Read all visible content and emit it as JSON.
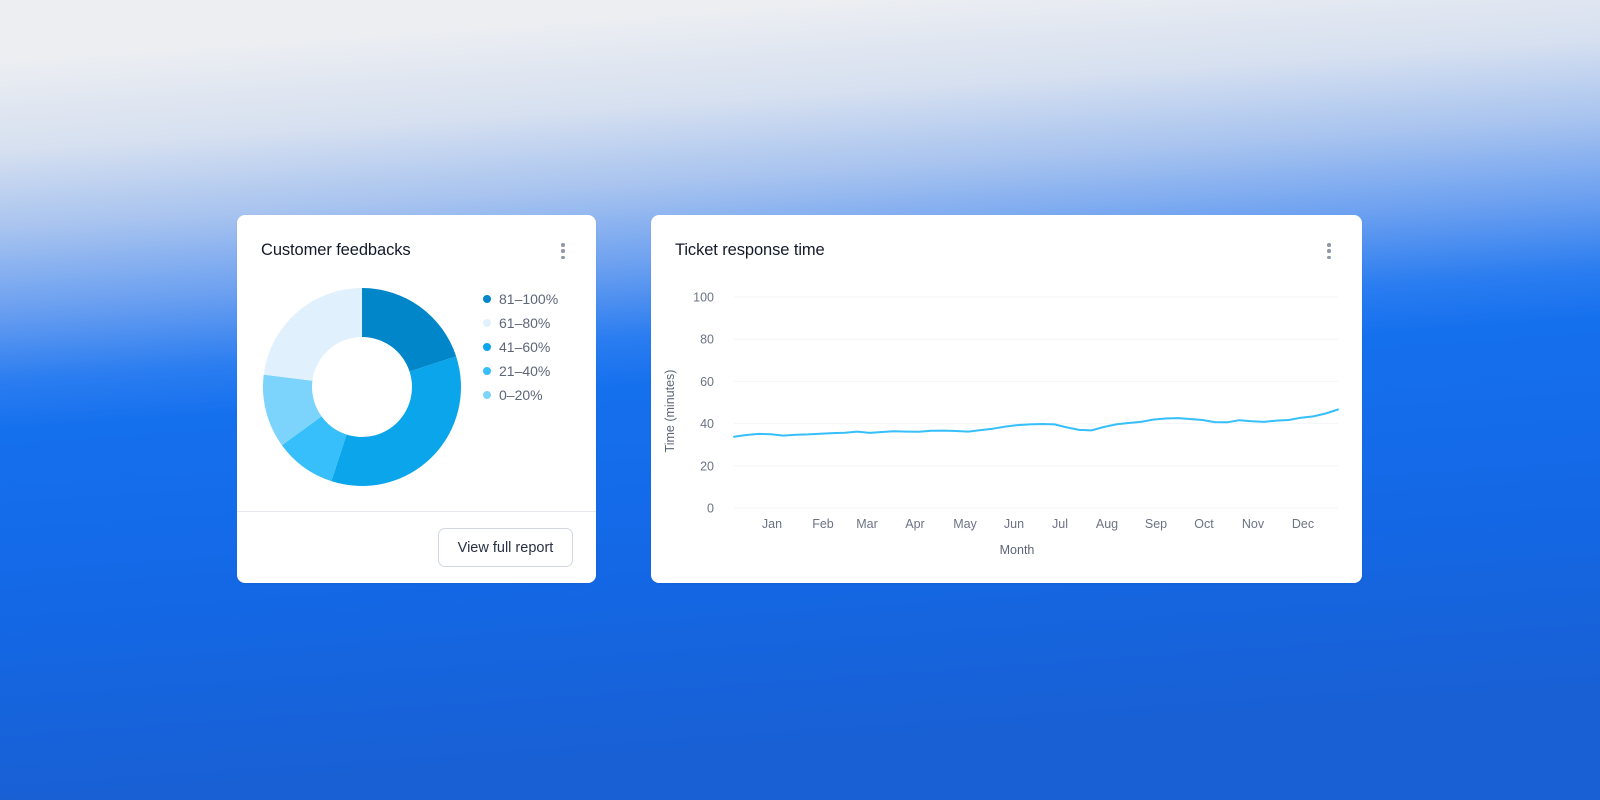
{
  "cards": {
    "feedback": {
      "title": "Customer feedbacks",
      "menu_icon": "kebab-vertical-icon",
      "button_label": "View full report"
    },
    "response": {
      "title": "Ticket response time",
      "menu_icon": "kebab-vertical-icon"
    }
  },
  "colors": {
    "slice_81_100": "#0086c9",
    "slice_61_80": "#e0f0fc",
    "slice_41_60": "#0ba5ec",
    "slice_21_40": "#36bffa",
    "slice_0_20": "#7cd4fd",
    "line": "#36bffa",
    "gridline": "#f2f4f7"
  },
  "chart_data": [
    {
      "type": "pie",
      "title": "Customer feedbacks",
      "donut": true,
      "legend_position": "right",
      "categories": [
        "81–100%",
        "61–80%",
        "41–60%",
        "21–40%",
        "0–20%"
      ],
      "values": [
        20,
        23,
        35,
        10,
        12
      ],
      "colors": [
        "#0086c9",
        "#e0f0fc",
        "#0ba5ec",
        "#36bffa",
        "#7cd4fd"
      ],
      "draw_order_clockwise_from_top": [
        "81–100%",
        "41–60%",
        "21–40%",
        "0–20%",
        "61–80%"
      ]
    },
    {
      "type": "line",
      "title": "Ticket response time",
      "xlabel": "Month",
      "ylabel": "Time (minutes)",
      "ylim": [
        0,
        100
      ],
      "yticks": [
        0,
        20,
        40,
        60,
        80,
        100
      ],
      "xticks": [
        "Jan",
        "Feb",
        "Mar",
        "Apr",
        "May",
        "Jun",
        "Jul",
        "Aug",
        "Sep",
        "Oct",
        "Nov",
        "Dec"
      ],
      "grid": true,
      "legend": false,
      "series": [
        {
          "name": "Response time",
          "values": [
            33.8,
            34.6,
            35.1,
            35.0,
            34.3,
            34.7,
            34.9,
            35.2,
            35.5,
            35.7,
            36.2,
            35.6,
            36.0,
            36.4,
            36.2,
            36.1,
            36.6,
            36.7,
            36.5,
            36.2,
            36.9,
            37.6,
            38.6,
            39.3,
            39.6,
            39.8,
            39.6,
            38.2,
            37.0,
            36.8,
            38.4,
            39.6,
            40.3,
            40.8,
            41.9,
            42.4,
            42.6,
            42.2,
            41.7,
            40.7,
            40.6,
            41.6,
            41.1,
            40.8,
            41.4,
            41.7,
            42.8,
            43.4,
            44.8,
            46.7
          ]
        }
      ]
    }
  ]
}
